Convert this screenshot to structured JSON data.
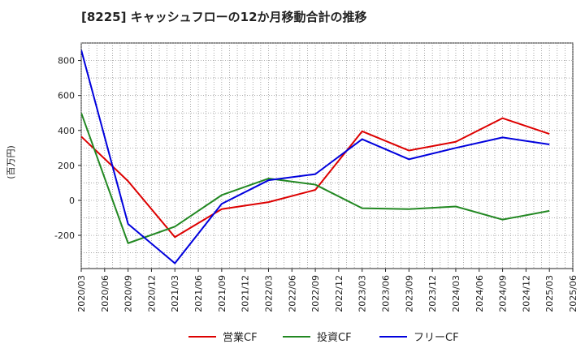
{
  "chart_data": {
    "type": "line",
    "title": "[8225]  キャッシュフローの12か月移動合計の推移",
    "ylabel": "(百万円)",
    "xlabel": "",
    "ylim": [
      -390,
      900
    ],
    "yticks": [
      -200,
      0,
      200,
      400,
      600,
      800
    ],
    "grid": true,
    "legend_position": "bottom-center",
    "x_tick_labels": [
      "2020/03",
      "2020/06",
      "2020/09",
      "2020/12",
      "2021/03",
      "2021/06",
      "2021/09",
      "2021/12",
      "2022/03",
      "2022/06",
      "2022/09",
      "2022/12",
      "2023/03",
      "2023/06",
      "2023/09",
      "2023/12",
      "2024/03",
      "2024/06",
      "2024/09",
      "2024/12",
      "2025/03",
      "2025/06"
    ],
    "x_points": [
      "2020/03",
      "2020/09",
      "2021/03",
      "2021/09",
      "2022/03",
      "2022/09",
      "2023/03",
      "2023/09",
      "2024/03",
      "2024/09",
      "2025/03"
    ],
    "series": [
      {
        "name": "営業CF",
        "color": "#dd0000",
        "values": [
          365,
          110,
          -210,
          -50,
          -10,
          60,
          395,
          285,
          335,
          470,
          380
        ]
      },
      {
        "name": "投資CF",
        "color": "#228822",
        "values": [
          500,
          -245,
          -150,
          30,
          125,
          90,
          -45,
          -50,
          -35,
          -110,
          -60
        ]
      },
      {
        "name": "フリーCF",
        "color": "#0000dd",
        "values": [
          860,
          -135,
          -360,
          -20,
          115,
          150,
          350,
          235,
          300,
          360,
          320
        ]
      }
    ]
  }
}
